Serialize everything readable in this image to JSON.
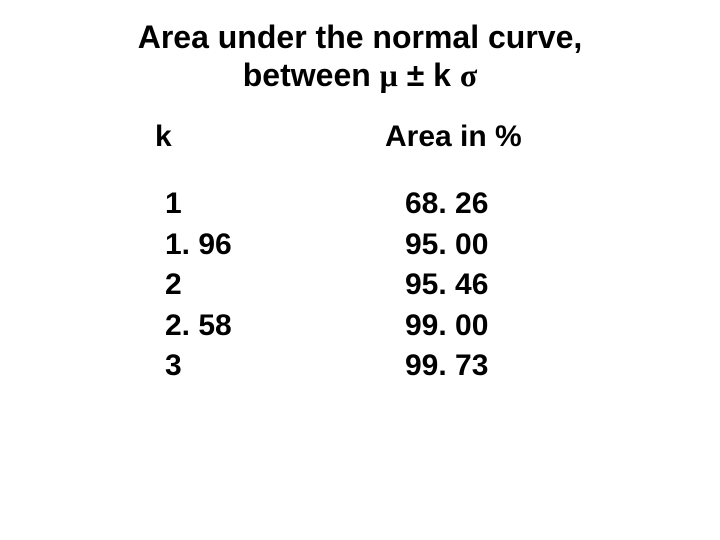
{
  "title_line1": "Area under the normal curve,",
  "title_line2_prefix": "between  ",
  "title_mu": "μ",
  "title_pm": " ± k ",
  "title_sigma": "σ",
  "headers": {
    "k": "k",
    "area": "Area in %"
  },
  "rows": [
    {
      "k": "1",
      "area": "68. 26"
    },
    {
      "k": "1. 96",
      "area": "95. 00"
    },
    {
      "k": "2",
      "area": "95. 46"
    },
    {
      "k": "2. 58",
      "area": "99. 00"
    },
    {
      "k": "3",
      "area": "99. 73"
    }
  ],
  "style": {
    "background_color": "#ffffff",
    "text_color": "#000000",
    "title_fontsize": 32,
    "body_fontsize": 30,
    "font_weight": "bold",
    "font_family": "Arial"
  }
}
